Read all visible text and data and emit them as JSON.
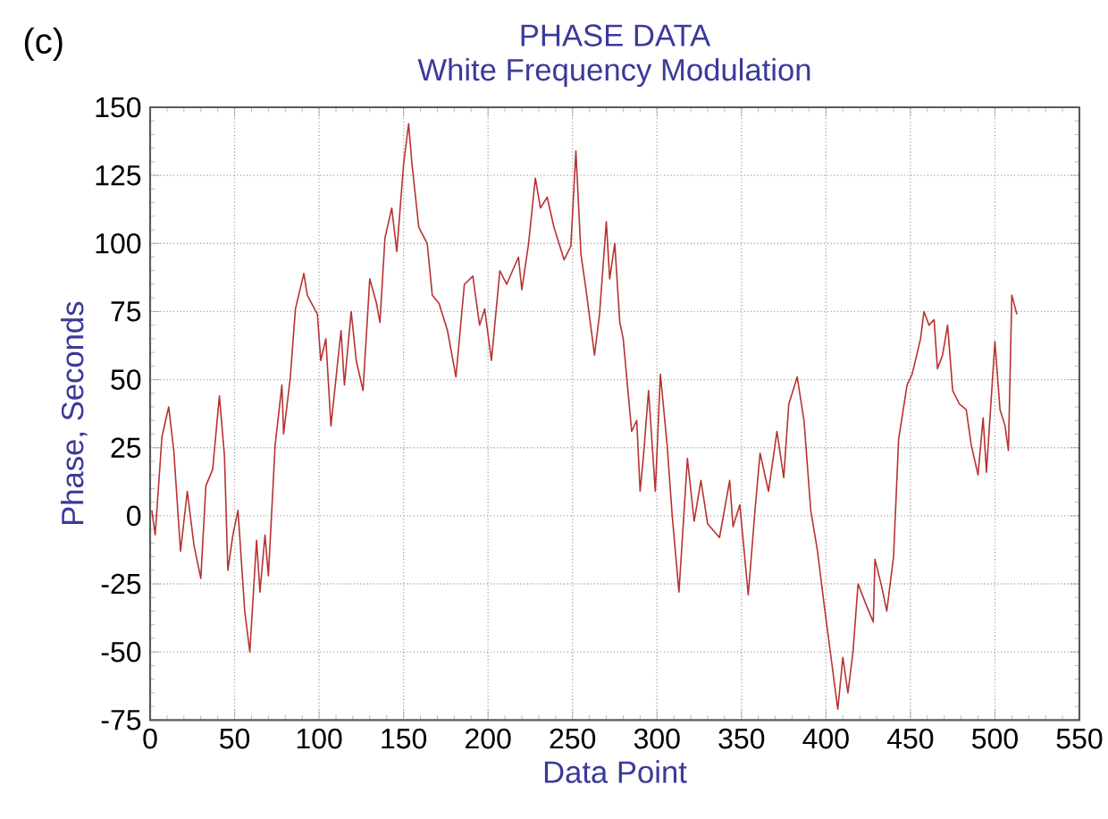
{
  "chart_data": {
    "type": "line",
    "title": "PHASE DATA",
    "subtitle": "White Frequency Modulation",
    "xlabel": "Data Point",
    "ylabel": "Phase, Seconds",
    "annotations": [
      "(c)"
    ],
    "xlim": [
      0,
      550
    ],
    "xticks": [
      0,
      50,
      100,
      150,
      200,
      250,
      300,
      350,
      400,
      450,
      500,
      550
    ],
    "ylim": [
      -75,
      150
    ],
    "yticks": [
      -75,
      -50,
      -25,
      0,
      25,
      50,
      75,
      100,
      125,
      150
    ],
    "grid": true,
    "marker": "none",
    "line_style": "solid",
    "series": [
      {
        "color": "#b83232",
        "x": [
          1,
          3,
          7,
          11,
          14,
          18,
          22,
          26,
          30,
          33,
          37,
          41,
          44,
          46,
          49,
          52,
          56,
          59,
          63,
          65,
          68,
          70,
          74,
          78,
          79,
          83,
          86,
          91,
          93,
          99,
          101,
          104,
          107,
          113,
          115,
          119,
          122,
          126,
          130,
          134,
          136,
          139,
          143,
          146,
          150,
          153,
          155,
          159,
          164,
          167,
          171,
          176,
          181,
          186,
          191,
          195,
          198,
          202,
          207,
          211,
          218,
          220,
          224,
          228,
          231,
          235,
          239,
          245,
          249,
          252,
          255,
          258,
          263,
          266,
          270,
          272,
          275,
          278,
          280,
          285,
          288,
          290,
          292,
          295,
          299,
          302,
          306,
          309,
          313,
          318,
          322,
          326,
          330,
          337,
          343,
          345,
          349,
          351,
          354,
          358,
          361,
          366,
          371,
          375,
          378,
          383,
          387,
          391,
          395,
          399,
          403,
          407,
          410,
          413,
          416,
          419,
          424,
          428,
          429,
          433,
          436,
          440,
          443,
          448,
          451,
          456,
          458,
          461,
          464,
          466,
          469,
          472,
          475,
          479,
          483,
          486,
          490,
          493,
          495,
          500,
          503,
          506,
          508,
          510,
          513
        ],
        "values": [
          2,
          -7,
          29,
          40,
          24,
          -13,
          9,
          -11,
          -23,
          11,
          17,
          44,
          22,
          -20,
          -7,
          2,
          -35,
          -50,
          -9,
          -28,
          -7,
          -22,
          26,
          48,
          30,
          51,
          76,
          89,
          81,
          74,
          57,
          65,
          33,
          68,
          48,
          75,
          57,
          46,
          87,
          78,
          71,
          102,
          113,
          97,
          129,
          144,
          129,
          106,
          100,
          81,
          78,
          68,
          51,
          85,
          88,
          70,
          76,
          57,
          90,
          85,
          95,
          83,
          100,
          124,
          113,
          117,
          106,
          94,
          99,
          134,
          96,
          83,
          59,
          74,
          108,
          87,
          100,
          71,
          65,
          31,
          35,
          9,
          22,
          46,
          9,
          52,
          26,
          0,
          -28,
          21,
          -2,
          13,
          -3,
          -8,
          13,
          -4,
          4,
          -9,
          -29,
          2,
          23,
          9,
          31,
          14,
          41,
          51,
          35,
          2,
          -13,
          -33,
          -52,
          -71,
          -52,
          -65,
          -50,
          -25,
          -33,
          -39,
          -16,
          -26,
          -35,
          -15,
          28,
          48,
          52,
          65,
          75,
          70,
          72,
          54,
          59,
          70,
          46,
          41,
          39,
          26,
          15,
          36,
          16,
          64,
          39,
          33,
          24,
          81,
          74
        ]
      }
    ]
  }
}
